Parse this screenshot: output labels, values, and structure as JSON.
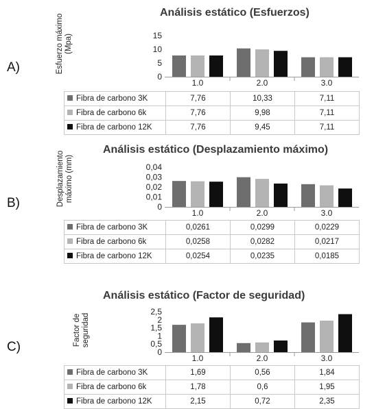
{
  "colors": {
    "series": [
      "#6e6e6e",
      "#b4b4b4",
      "#0f0f0f"
    ],
    "axis": "#9a9a9a",
    "grid": "#c8c8c8"
  },
  "chart_data": [
    {
      "type": "bar",
      "panel_label": "A)",
      "title": "Análisis estático (Esfuerzos)",
      "ylabel_lines": [
        "Esfuerzo máximo",
        "(Mpa)"
      ],
      "categories": [
        "1.0",
        "2.0",
        "3.0"
      ],
      "ylim": [
        0,
        15
      ],
      "yticks": [
        "0",
        "5",
        "10",
        "15"
      ],
      "grid": false,
      "legend": "table-below",
      "series": [
        {
          "name": "Fibra de carbono 3K",
          "values": [
            7.76,
            10.33,
            7.11
          ],
          "labels": [
            "7,76",
            "10,33",
            "7,11"
          ]
        },
        {
          "name": "Fibra de carbono 6k",
          "values": [
            7.76,
            9.98,
            7.11
          ],
          "labels": [
            "7,76",
            "9,98",
            "7,11"
          ]
        },
        {
          "name": "Fibra de carbono 12K",
          "values": [
            7.76,
            9.45,
            7.11
          ],
          "labels": [
            "7,76",
            "9,45",
            "7,11"
          ]
        }
      ]
    },
    {
      "type": "bar",
      "panel_label": "B)",
      "title": "Análisis estático (Desplazamiento máximo)",
      "ylabel_lines": [
        "Desplazamiento",
        "máximo (mm)"
      ],
      "categories": [
        "1.0",
        "2.0",
        "3.0"
      ],
      "ylim": [
        0,
        0.04
      ],
      "yticks": [
        "0",
        "0,01",
        "0,02",
        "0,03",
        "0,04"
      ],
      "grid": false,
      "legend": "table-below",
      "series": [
        {
          "name": "Fibra de carbono 3K",
          "values": [
            0.0261,
            0.0299,
            0.0229
          ],
          "labels": [
            "0,0261",
            "0,0299",
            "0,0229"
          ]
        },
        {
          "name": "Fibra de carbono 6k",
          "values": [
            0.0258,
            0.0282,
            0.0217
          ],
          "labels": [
            "0,0258",
            "0,0282",
            "0,0217"
          ]
        },
        {
          "name": "Fibra de carbono 12K",
          "values": [
            0.0254,
            0.0235,
            0.0185
          ],
          "labels": [
            "0,0254",
            "0,0235",
            "0,0185"
          ]
        }
      ]
    },
    {
      "type": "bar",
      "panel_label": "C)",
      "title": "Análisis estático (Factor de seguridad)",
      "ylabel_lines": [
        "Factor de",
        "seguridad"
      ],
      "categories": [
        "1.0",
        "2.0",
        "3.0"
      ],
      "ylim": [
        0,
        2.5
      ],
      "yticks": [
        "0",
        "0,5",
        "1",
        "1,5",
        "2",
        "2,5"
      ],
      "grid": false,
      "legend": "table-below",
      "series": [
        {
          "name": "Fibra de carbono 3K",
          "values": [
            1.69,
            0.56,
            1.84
          ],
          "labels": [
            "1,69",
            "0,56",
            "1,84"
          ]
        },
        {
          "name": "Fibra de carbono 6k",
          "values": [
            1.78,
            0.6,
            1.95
          ],
          "labels": [
            "1,78",
            "0,6",
            "1,95"
          ]
        },
        {
          "name": "Fibra de carbono 12K",
          "values": [
            2.15,
            0.72,
            2.35
          ],
          "labels": [
            "2,15",
            "0,72",
            "2,35"
          ]
        }
      ]
    }
  ]
}
